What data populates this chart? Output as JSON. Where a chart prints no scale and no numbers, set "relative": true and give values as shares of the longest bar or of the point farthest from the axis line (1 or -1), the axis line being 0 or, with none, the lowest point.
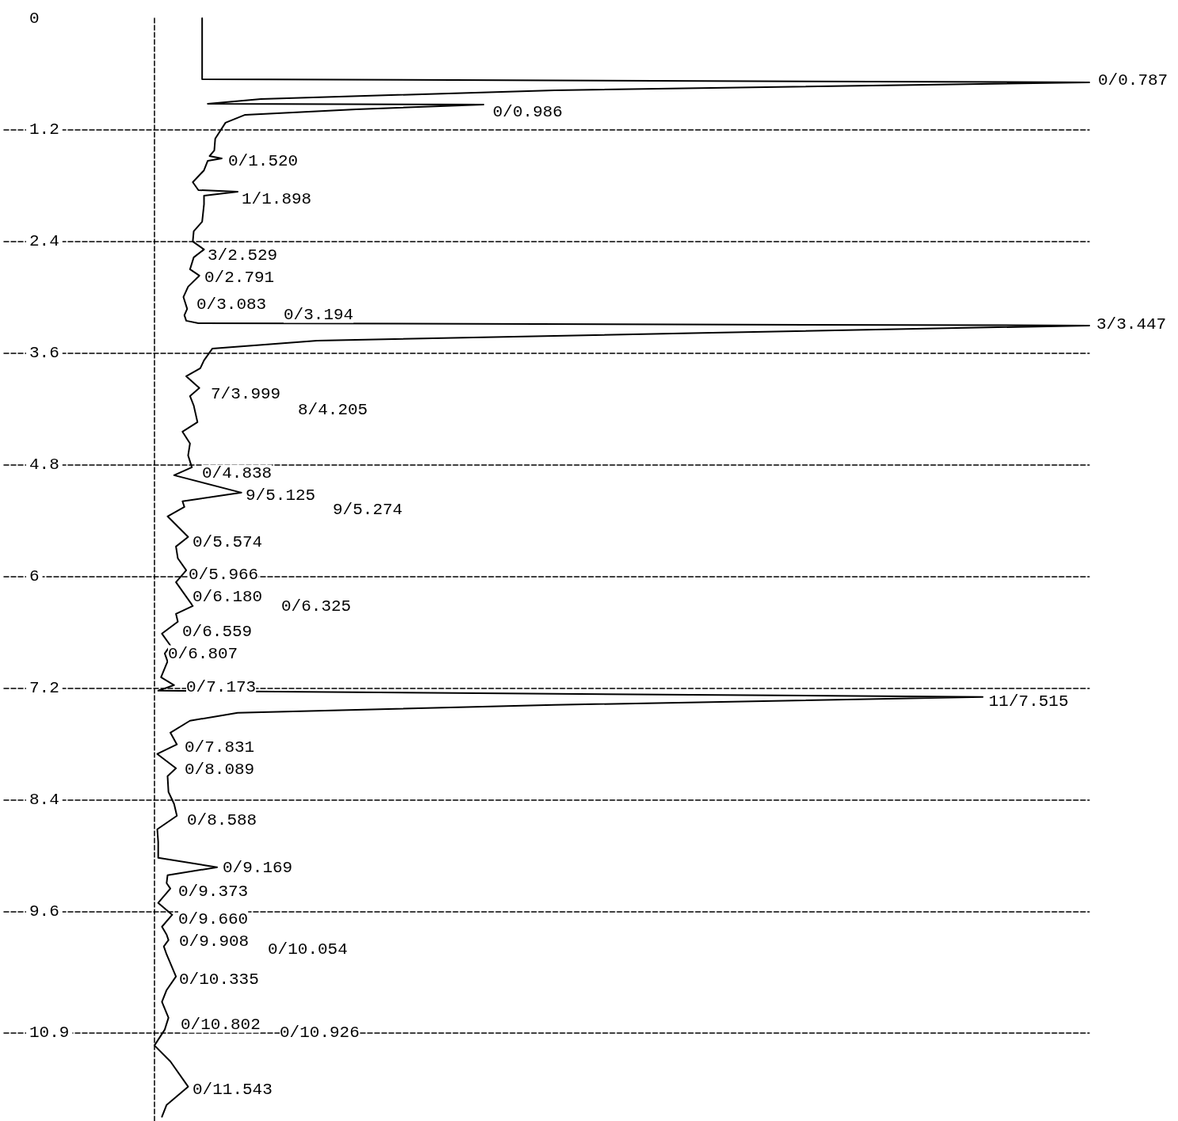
{
  "chart_data": {
    "type": "line",
    "orientation": "horizontal",
    "relative": true,
    "ylim": [
      11.85,
      0
    ],
    "yticks": [
      0,
      1.2,
      2.4,
      3.6,
      4.8,
      6,
      7.2,
      8.4,
      9.6,
      10.9
    ],
    "grid": "y",
    "series": [
      {
        "color": "#000000",
        "x": [
          0,
          0.655,
          0.689,
          0.774,
          0.868,
          0.919,
          0.928,
          0.979,
          1.038,
          1.123,
          1.294,
          1.421,
          1.481,
          1.506,
          1.532,
          1.634,
          1.762,
          1.847,
          1.864,
          1.906,
          2.0,
          2.187,
          2.289,
          2.4,
          2.485,
          2.57,
          2.698,
          2.766,
          2.885,
          2.996,
          3.123,
          3.191,
          3.251,
          3.277,
          3.302,
          3.379,
          3.464,
          3.549,
          3.677,
          3.762,
          3.847,
          3.974,
          4.06,
          4.162,
          4.34,
          4.443,
          4.57,
          4.698,
          4.826,
          4.911,
          5.098,
          5.191,
          5.251,
          5.353,
          5.574,
          5.677,
          5.804,
          5.932,
          6.06,
          6.315,
          6.4,
          6.485,
          6.613,
          6.74,
          6.826,
          6.911,
          7.081,
          7.166,
          7.226,
          7.294,
          7.379,
          7.464,
          7.549,
          7.677,
          7.804,
          7.906,
          8.06,
          8.145,
          8.315,
          8.443,
          8.57,
          8.715,
          8.851,
          9.021,
          9.123,
          9.209,
          9.294,
          9.353,
          9.506,
          9.634,
          9.762,
          9.847,
          9.906,
          9.974,
          10.06,
          10.298,
          10.443,
          10.57,
          10.74,
          10.868,
          11.038,
          11.209,
          11.481,
          11.677,
          11.804
        ],
        "values": [
          0.051,
          0.051,
          1,
          0.428,
          0.114,
          0.057,
          0.352,
          0.216,
          0.097,
          0.076,
          0.065,
          0.064,
          0.059,
          0.072,
          0.057,
          0.053,
          0.041,
          0.047,
          0.089,
          0.053,
          0.053,
          0.051,
          0.042,
          0.041,
          0.053,
          0.042,
          0.038,
          0.048,
          0.036,
          0.031,
          0.035,
          0.032,
          0.034,
          0.047,
          1,
          0.597,
          0.174,
          0.062,
          0.053,
          0.049,
          0.034,
          0.048,
          0.038,
          0.042,
          0.046,
          0.03,
          0.038,
          0.036,
          0.04,
          0.021,
          0.093,
          0.03,
          0.032,
          0.014,
          0.036,
          0.023,
          0.025,
          0.034,
          0.023,
          0.041,
          0.023,
          0.025,
          0.008,
          0.017,
          0.011,
          0.014,
          0.007,
          0.021,
          0.004,
          0.886,
          0.428,
          0.089,
          0.038,
          0.017,
          0.024,
          0.003,
          0.023,
          0.014,
          0.015,
          0.021,
          0.024,
          0.003,
          0.004,
          0.004,
          0.067,
          0.014,
          0.013,
          0.017,
          0.004,
          0.019,
          0.008,
          0.013,
          0.015,
          0.01,
          0.013,
          0.023,
          0.013,
          0.008,
          0.015,
          0.011,
          0,
          0.017,
          0.036,
          0.013,
          0.008
        ]
      }
    ],
    "annotations": [
      "0/0.787",
      "0/0.986",
      "0/1.520",
      "1/1.898",
      "3/2.529",
      "0/2.791",
      "0/3.083",
      "0/3.194",
      "3/3.447",
      "7/3.999",
      "8/4.205",
      "0/4.838",
      "9/5.125",
      "9/5.274",
      "0/5.574",
      "0/5.966",
      "0/6.180",
      "0/6.325",
      "0/6.559",
      "0/6.807",
      "0/7.173",
      "11/7.515",
      "0/7.831",
      "0/8.089",
      "0/8.588",
      "0/9.169",
      "0/9.373",
      "0/9.660",
      "0/9.908",
      "0/10.054",
      "0/10.335",
      "0/10.802",
      "0/10.926",
      "0/11.543"
    ]
  }
}
